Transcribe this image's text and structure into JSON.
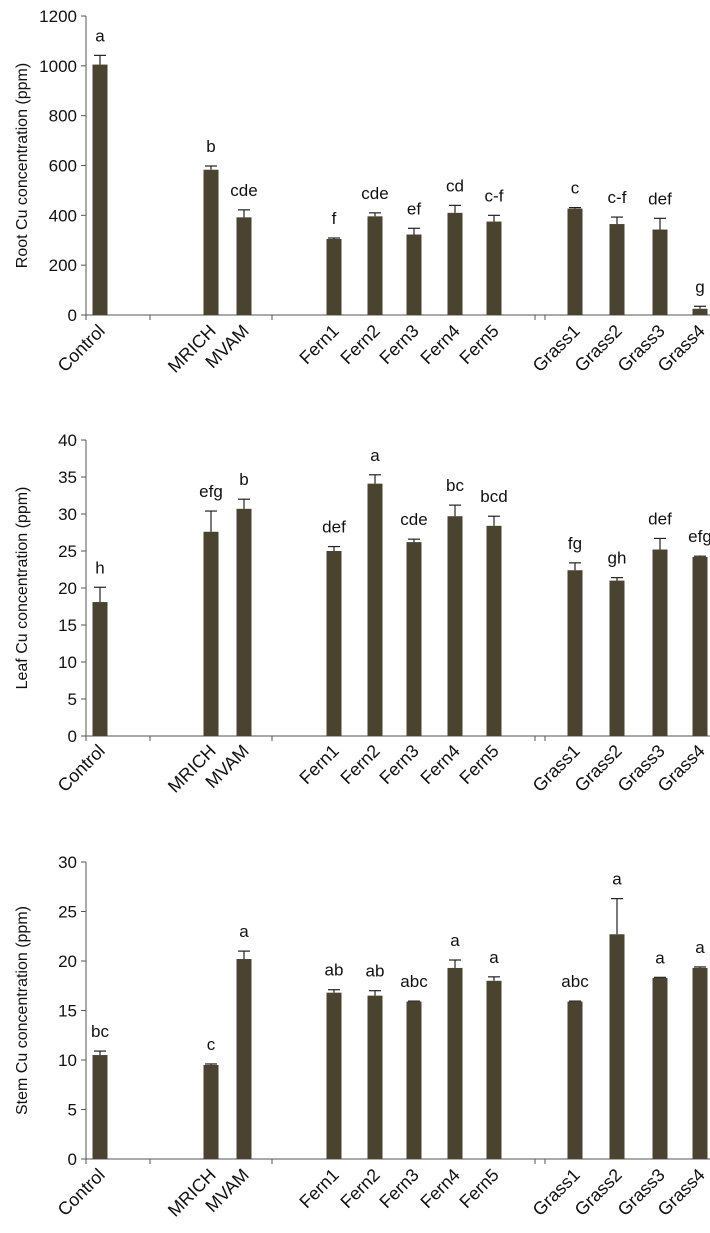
{
  "bar_color": "#4a4330",
  "axis_color": "#555555",
  "chart_data": [
    {
      "type": "bar",
      "ylabel": "Root  Cu concentration (ppm)",
      "ylim": [
        0,
        1200
      ],
      "yticks": [
        0,
        200,
        400,
        600,
        800,
        1000,
        1200
      ],
      "grid": false,
      "error_bars": true,
      "categories": [
        "Control",
        "MRICH",
        "MVAM",
        "Fern1",
        "Fern2",
        "Fern3",
        "Fern4",
        "Fern5",
        "Grass1",
        "Grass2",
        "Grass3",
        "Grass4"
      ],
      "values": [
        1005,
        583,
        392,
        305,
        396,
        323,
        410,
        375,
        427,
        365,
        343,
        25
      ],
      "errors": [
        37,
        15,
        30,
        4,
        14,
        25,
        30,
        25,
        4,
        28,
        45,
        10
      ],
      "letters": [
        "a",
        "b",
        "cde",
        "f",
        "cde",
        "ef",
        "cd",
        "c-f",
        "c",
        "c-f",
        "def",
        "g"
      ]
    },
    {
      "type": "bar",
      "ylabel": "Leaf Cu concentration (ppm)",
      "ylim": [
        0,
        40
      ],
      "yticks": [
        0,
        5,
        10,
        15,
        20,
        25,
        30,
        35,
        40
      ],
      "grid": false,
      "error_bars": true,
      "categories": [
        "Control",
        "MRICH",
        "MVAM",
        "Fern1",
        "Fern2",
        "Fern3",
        "Fern4",
        "Fern5",
        "Grass1",
        "Grass2",
        "Grass3",
        "Grass4"
      ],
      "values": [
        18.1,
        27.6,
        30.7,
        25.0,
        34.1,
        26.2,
        29.7,
        28.4,
        22.4,
        21.0,
        25.2,
        24.2
      ],
      "errors": [
        2.0,
        2.8,
        1.3,
        0.6,
        1.2,
        0.4,
        1.5,
        1.3,
        1.0,
        0.4,
        1.5,
        0.1
      ],
      "letters": [
        "h",
        "efg",
        "b",
        "def",
        "a",
        "cde",
        "bc",
        "bcd",
        "fg",
        "gh",
        "def",
        "efg"
      ]
    },
    {
      "type": "bar",
      "ylabel": "Stem Cu concentration (ppm)",
      "ylim": [
        0,
        30
      ],
      "yticks": [
        0,
        5,
        10,
        15,
        20,
        25,
        30
      ],
      "grid": false,
      "error_bars": true,
      "categories": [
        "Control",
        "MRICH",
        "MVAM",
        "Fern1",
        "Fern2",
        "Fern3",
        "Fern4",
        "Fern5",
        "Grass1",
        "Grass2",
        "Grass3",
        "Grass4"
      ],
      "values": [
        10.5,
        9.5,
        20.2,
        16.8,
        16.5,
        15.9,
        19.3,
        18.0,
        15.9,
        22.7,
        18.3,
        19.3
      ],
      "errors": [
        0.4,
        0.1,
        0.8,
        0.3,
        0.5,
        0.05,
        0.8,
        0.4,
        0.05,
        3.6,
        0.05,
        0.1
      ],
      "letters": [
        "bc",
        "c",
        "a",
        "ab",
        "ab",
        "abc",
        "a",
        "a",
        "abc",
        "a",
        "a",
        "a"
      ]
    }
  ]
}
